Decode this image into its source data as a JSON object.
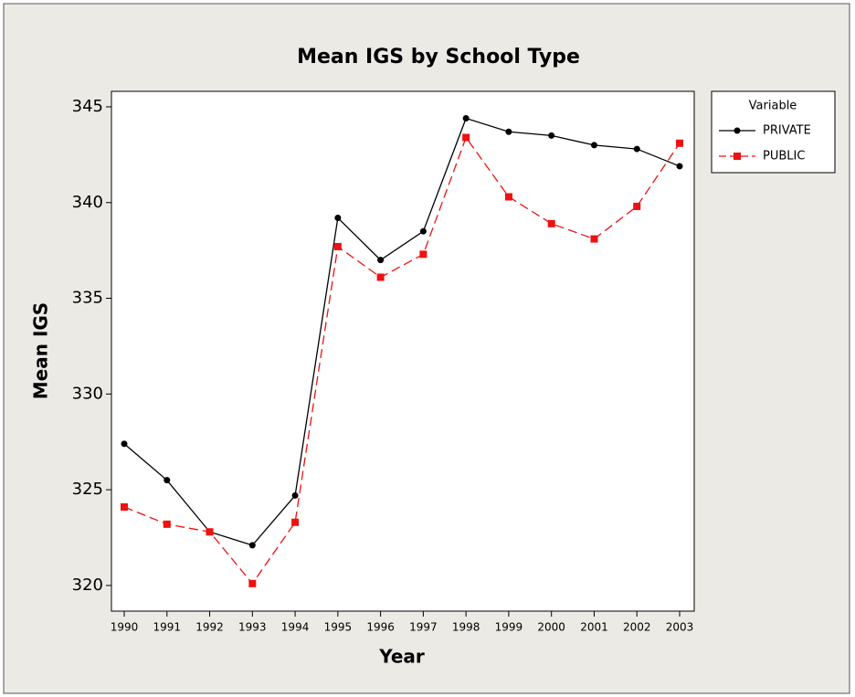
{
  "chart_data": {
    "type": "line",
    "title": "Mean IGS by School Type",
    "x_label": "Year",
    "y_label": "Mean IGS",
    "categories": [
      "1990",
      "1991",
      "1992",
      "1993",
      "1994",
      "1995",
      "1996",
      "1997",
      "1998",
      "1999",
      "2000",
      "2001",
      "2002",
      "2003"
    ],
    "legend_title": "Variable",
    "legend_position": "right",
    "series": [
      {
        "name": "PRIVATE",
        "color": "#000000",
        "marker": "circle",
        "dash": "solid",
        "values": [
          327.4,
          325.5,
          322.8,
          322.1,
          324.7,
          339.2,
          337.0,
          338.5,
          344.4,
          343.7,
          343.5,
          343.0,
          342.8,
          341.9
        ]
      },
      {
        "name": "PUBLIC",
        "color": "#ee1111",
        "marker": "square",
        "dash": "dashed",
        "values": [
          324.1,
          323.2,
          322.8,
          320.1,
          323.3,
          337.7,
          336.1,
          337.3,
          343.4,
          340.3,
          338.9,
          338.1,
          339.8,
          343.1
        ]
      }
    ],
    "ylim": [
      318.66,
      345.81
    ],
    "yticks": [
      320,
      325,
      330,
      335,
      340,
      345
    ],
    "grid": false
  }
}
